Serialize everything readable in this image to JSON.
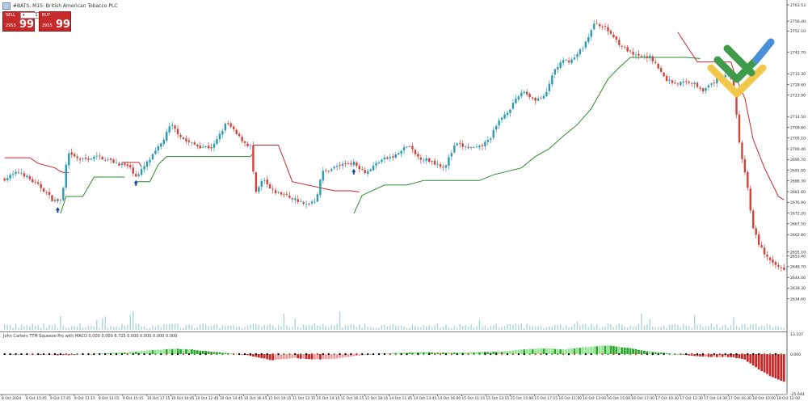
{
  "window": {
    "title": "#BATS, M15: British American Tobacco PLC"
  },
  "trade_panel": {
    "sell_label": "SELL",
    "buy_label": "BUY",
    "lot_value": "1",
    "sell_base": "2953",
    "sell_big": "99",
    "buy_base": "2955",
    "buy_big": "99"
  },
  "indicator": {
    "title": "John Carters TTM Squeeze Pro with MACD 0.000 0.000 6.725 0.000 0.000 0.000 0.000",
    "ticks": [
      "13.107",
      "0.000",
      "-25.644"
    ],
    "ylim": [
      -25.644,
      13.107
    ]
  },
  "colors": {
    "bull": "#2e9bb3",
    "bear": "#d2443b",
    "stop_short": "#c62828",
    "stop_long": "#2e8b2e",
    "volume": "#a9d4dc",
    "hist_green": "#2aa62a",
    "hist_lightgreen": "#8ee68e",
    "hist_red": "#c62828",
    "hist_pink": "#ef9a9a",
    "dot_red": "#e53935",
    "dot_green": "#43a047",
    "dot_black": "#000000"
  },
  "chart_data": {
    "type": "candlestick",
    "symbol": "#BATS",
    "timeframe": "M15",
    "ylim": [
      2621.0,
      2763.53
    ],
    "y_ticks": [
      "2763.53",
      "2756.40",
      "2752.10",
      "2742.70",
      "2733.30",
      "2728.60",
      "2723.90",
      "2714.50",
      "2709.80",
      "2705.10",
      "2700.40",
      "2695.70",
      "2691.00",
      "2686.30",
      "2681.60",
      "2676.90",
      "2672.20",
      "2667.50",
      "2662.80",
      "2655.10",
      "2653.40",
      "2648.70",
      "2644.00",
      "2639.30",
      "2634.60"
    ],
    "x_labels": [
      "8 Oct 2024",
      "8 Oct 15:45",
      "9 Oct 17:45",
      "9 Oct 11:15",
      "9 Oct 13:15",
      "9 Oct 15:15",
      "10 Oct 17:15",
      "10 Oct 10:45",
      "10 Oct 12:45",
      "10 Oct 14:45",
      "10 Oct 16:45",
      "11 Oct 10:15",
      "11 Oct 12:15",
      "11 Oct 14:15",
      "11 Oct 16:15",
      "11 Oct 18:15",
      "14 Oct 11:45",
      "14 Oct 13:45",
      "14 Oct 16:00",
      "15 Oct 11:15",
      "15 Oct 13:15",
      "15 Oct 15:00",
      "15 Oct 17:15",
      "16 Oct 11:00",
      "16 Oct 13:00",
      "16 Oct 15:00",
      "16 Oct 17:00",
      "17 Oct 10:30",
      "17 Oct 12:30",
      "17 Oct 14:30",
      "17 Oct 16:30",
      "18 Oct 10:00",
      "18 Oct 12:00"
    ],
    "anchors": [
      [
        0,
        2687.0
      ],
      [
        6,
        2690.5
      ],
      [
        10,
        2686.5
      ],
      [
        14,
        2683.0
      ],
      [
        18,
        2677.5
      ],
      [
        21,
        2678.0
      ],
      [
        23,
        2698.0
      ],
      [
        28,
        2695.5
      ],
      [
        34,
        2697.0
      ],
      [
        40,
        2694.5
      ],
      [
        45,
        2692.5
      ],
      [
        48,
        2688.0
      ],
      [
        50,
        2692.0
      ],
      [
        53,
        2696.5
      ],
      [
        57,
        2703.5
      ],
      [
        60,
        2711.0
      ],
      [
        65,
        2704.0
      ],
      [
        70,
        2701.5
      ],
      [
        75,
        2701.0
      ],
      [
        80,
        2712.0
      ],
      [
        84,
        2706.0
      ],
      [
        87,
        2702.5
      ],
      [
        89,
        2701.0
      ],
      [
        90,
        2679.5
      ],
      [
        93,
        2687.0
      ],
      [
        96,
        2682.0
      ],
      [
        100,
        2680.5
      ],
      [
        105,
        2678.0
      ],
      [
        108,
        2675.5
      ],
      [
        110,
        2677.0
      ],
      [
        112,
        2678.0
      ],
      [
        114,
        2690.0
      ],
      [
        120,
        2693.0
      ],
      [
        125,
        2694.5
      ],
      [
        130,
        2690.0
      ],
      [
        135,
        2695.5
      ],
      [
        140,
        2697.0
      ],
      [
        145,
        2702.0
      ],
      [
        148,
        2697.0
      ],
      [
        153,
        2695.0
      ],
      [
        158,
        2692.5
      ],
      [
        162,
        2702.5
      ],
      [
        166,
        2701.0
      ],
      [
        170,
        2700.5
      ],
      [
        174,
        2704.5
      ],
      [
        178,
        2713.5
      ],
      [
        182,
        2719.0
      ],
      [
        186,
        2726.0
      ],
      [
        190,
        2722.0
      ],
      [
        194,
        2723.0
      ],
      [
        197,
        2734.5
      ],
      [
        200,
        2738.5
      ],
      [
        204,
        2739.5
      ],
      [
        208,
        2746.0
      ],
      [
        212,
        2756.0
      ],
      [
        216,
        2753.0
      ],
      [
        221,
        2746.0
      ],
      [
        226,
        2741.0
      ],
      [
        232,
        2740.5
      ],
      [
        237,
        2731.0
      ],
      [
        241,
        2729.0
      ],
      [
        246,
        2730.0
      ],
      [
        251,
        2726.0
      ],
      [
        256,
        2731.5
      ],
      [
        260,
        2734.0
      ],
      [
        262,
        2722.0
      ],
      [
        264,
        2697.5
      ],
      [
        266,
        2688.0
      ],
      [
        268,
        2668.0
      ],
      [
        270,
        2660.0
      ],
      [
        272,
        2655.5
      ],
      [
        275,
        2650.0
      ],
      [
        279,
        2648.0
      ]
    ],
    "stop_lines": [
      {
        "color": "short",
        "points": [
          [
            0,
            2696.5
          ],
          [
            9,
            2696.5
          ],
          [
            12,
            2694.0
          ],
          [
            18,
            2692.0
          ],
          [
            20,
            2690.5
          ],
          [
            21,
            2690.0
          ],
          [
            23,
            2690.0
          ]
        ]
      },
      {
        "color": "long",
        "points": [
          [
            20,
            2672.0
          ],
          [
            22,
            2679.5
          ],
          [
            28,
            2679.5
          ],
          [
            32,
            2688.0
          ],
          [
            40,
            2688.0
          ],
          [
            43,
            2688.0
          ]
        ]
      },
      {
        "color": "short",
        "points": [
          [
            42,
            2694.5
          ],
          [
            48,
            2694.5
          ],
          [
            49,
            2692.5
          ]
        ]
      },
      {
        "color": "long",
        "points": [
          [
            47,
            2686.0
          ],
          [
            52,
            2686.0
          ],
          [
            55,
            2693.5
          ],
          [
            58,
            2697.0
          ],
          [
            88,
            2697.0
          ],
          [
            89,
            2698.5
          ]
        ]
      },
      {
        "color": "short",
        "points": [
          [
            89,
            2702.0
          ],
          [
            98,
            2702.0
          ],
          [
            103,
            2686.0
          ],
          [
            118,
            2682.0
          ],
          [
            124,
            2682.0
          ],
          [
            127,
            2681.5
          ]
        ]
      },
      {
        "color": "long",
        "points": [
          [
            125,
            2672.0
          ],
          [
            128,
            2680.0
          ],
          [
            136,
            2684.5
          ],
          [
            144,
            2684.5
          ],
          [
            150,
            2686.5
          ],
          [
            170,
            2686.5
          ],
          [
            175,
            2689.0
          ],
          [
            185,
            2692.0
          ],
          [
            190,
            2697.0
          ],
          [
            195,
            2700.5
          ],
          [
            200,
            2706.0
          ],
          [
            205,
            2711.0
          ],
          [
            210,
            2718.0
          ],
          [
            216,
            2731.0
          ],
          [
            220,
            2736.0
          ],
          [
            224,
            2740.5
          ],
          [
            244,
            2740.5
          ],
          [
            249,
            2740.0
          ]
        ]
      },
      {
        "color": "short",
        "points": [
          [
            241,
            2751.5
          ],
          [
            248,
            2738.5
          ],
          [
            260,
            2738.5
          ],
          [
            262,
            2731.0
          ],
          [
            265,
            2722.5
          ],
          [
            268,
            2704.5
          ],
          [
            272,
            2692.0
          ],
          [
            277,
            2679.5
          ],
          [
            279,
            2678.0
          ]
        ]
      }
    ],
    "signals": [
      {
        "i": 19,
        "kind": "buy-arrow"
      },
      {
        "i": 47,
        "kind": "buy-arrow"
      },
      {
        "i": 125,
        "kind": "buy-arrow"
      }
    ],
    "histogram_anchors": [
      [
        0,
        0.0
      ],
      [
        8,
        -0.2
      ],
      [
        20,
        -0.6
      ],
      [
        28,
        -0.3
      ],
      [
        34,
        0.4
      ],
      [
        44,
        1.2
      ],
      [
        52,
        2.5
      ],
      [
        60,
        3.5
      ],
      [
        66,
        3.2
      ],
      [
        74,
        1.5
      ],
      [
        82,
        0.3
      ],
      [
        88,
        -1.0
      ],
      [
        96,
        -4.0
      ],
      [
        104,
        -2.5
      ],
      [
        110,
        -3.4
      ],
      [
        118,
        -3.0
      ],
      [
        126,
        -1.0
      ],
      [
        134,
        0.2
      ],
      [
        142,
        0.9
      ],
      [
        150,
        1.2
      ],
      [
        160,
        1.0
      ],
      [
        170,
        1.3
      ],
      [
        178,
        1.5
      ],
      [
        186,
        3.2
      ],
      [
        194,
        3.8
      ],
      [
        200,
        3.0
      ],
      [
        208,
        4.6
      ],
      [
        216,
        5.8
      ],
      [
        222,
        4.2
      ],
      [
        230,
        2.0
      ],
      [
        238,
        0.4
      ],
      [
        246,
        -1.0
      ],
      [
        254,
        -2.0
      ],
      [
        260,
        -1.8
      ],
      [
        265,
        -3.5
      ],
      [
        270,
        -10.0
      ],
      [
        274,
        -14.0
      ],
      [
        279,
        -18.0
      ]
    ]
  }
}
